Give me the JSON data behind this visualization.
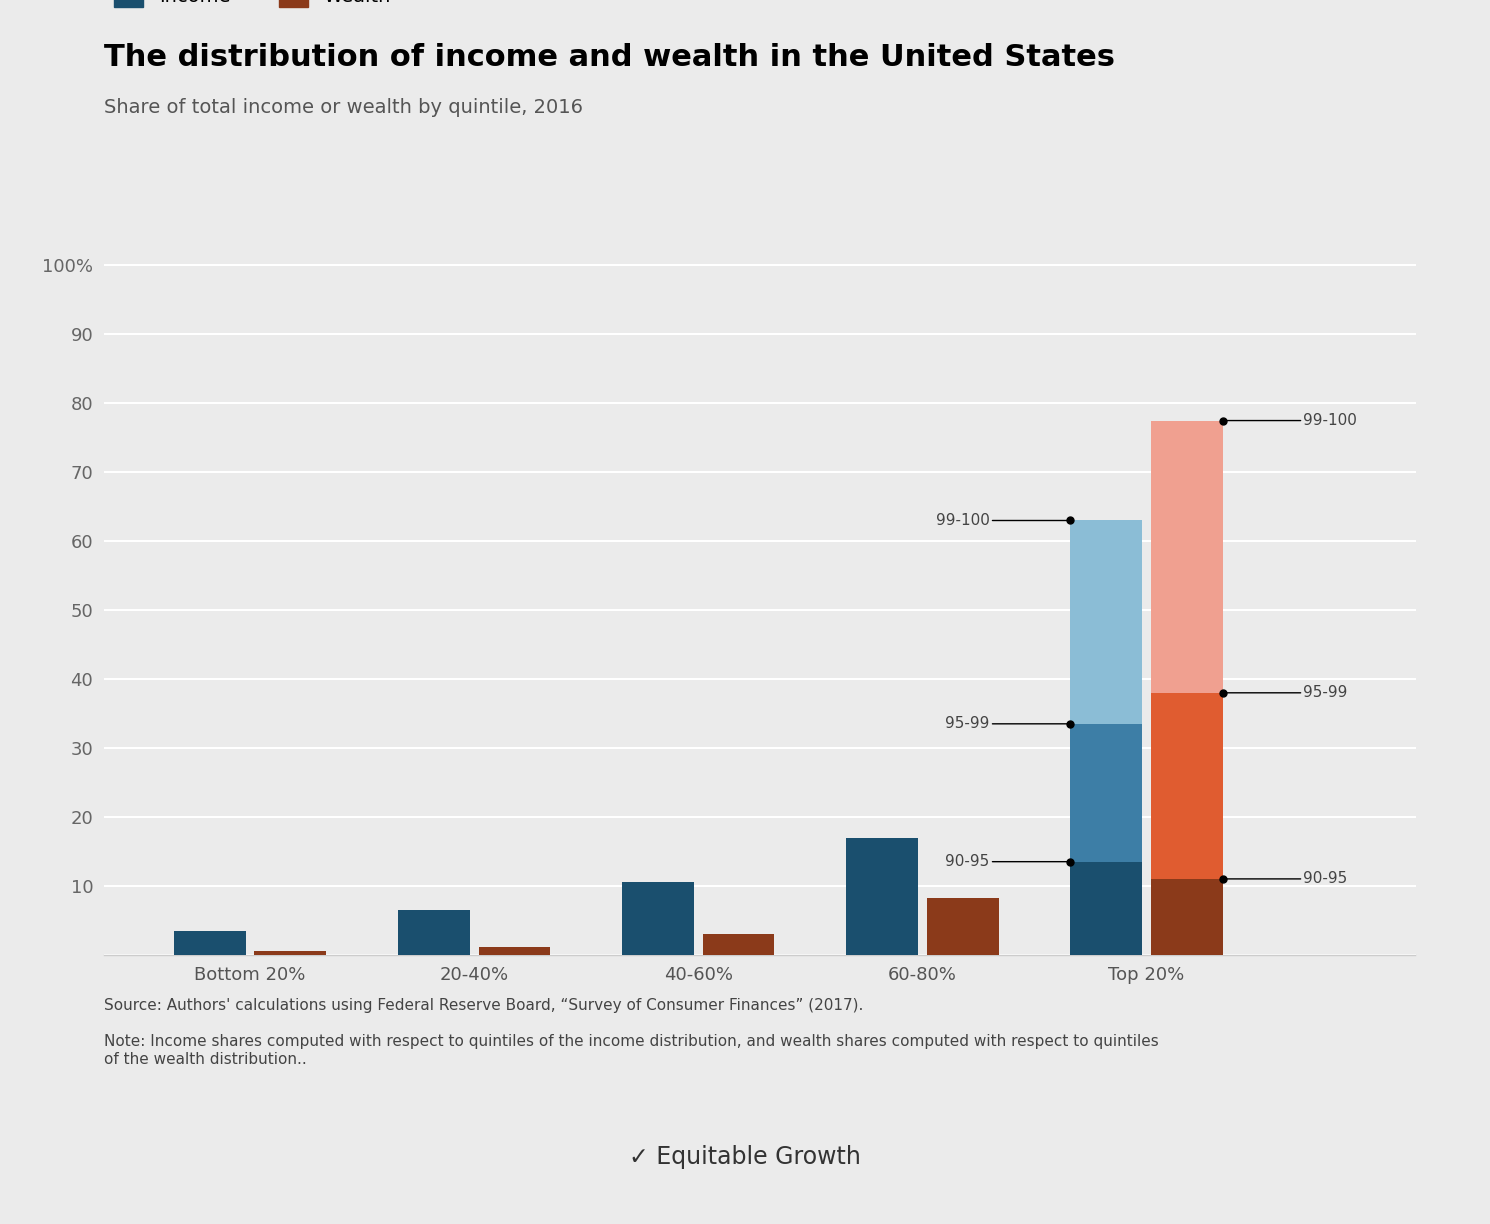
{
  "title": "The distribution of income and wealth in the United States",
  "subtitle": "Share of total income or wealth by quintile, 2016",
  "source_text": "Source: Authors' calculations using Federal Reserve Board, “Survey of Consumer Finances” (2017).",
  "note_text": "Note: Income shares computed with respect to quintiles of the income distribution, and wealth shares computed with respect to quintiles\nof the wealth distribution..",
  "categories": [
    "Bottom 20%",
    "20-40%",
    "40-60%",
    "60-80%",
    "Top 20%"
  ],
  "income_values": [
    3.5,
    6.5,
    10.5,
    17.0
  ],
  "wealth_values": [
    0.6,
    1.1,
    3.0,
    8.2
  ],
  "income_top20": {
    "90_95": 13.5,
    "95_99": 20.0,
    "99_100": 29.5
  },
  "wealth_top20": {
    "90_95": 11.0,
    "95_99": 27.0,
    "99_100": 39.5
  },
  "income_color_dark": "#1a4f6e",
  "income_color_mid": "#3d7ea6",
  "income_color_light": "#8bbdd6",
  "wealth_color_dark": "#8b3a1a",
  "wealth_color_mid": "#e05c30",
  "wealth_color_light": "#f0a090",
  "background_color": "#ebebeb",
  "legend_income_color": "#1a4f6e",
  "legend_wealth_color": "#8b3a1a",
  "bar_width": 0.32,
  "ylim": [
    0,
    100
  ],
  "yticks": [
    0,
    10,
    20,
    30,
    40,
    50,
    60,
    70,
    80,
    90,
    100
  ],
  "ytick_labels": [
    "",
    "10",
    "20",
    "30",
    "40",
    "50",
    "60",
    "70",
    "80",
    "90",
    "100%"
  ]
}
